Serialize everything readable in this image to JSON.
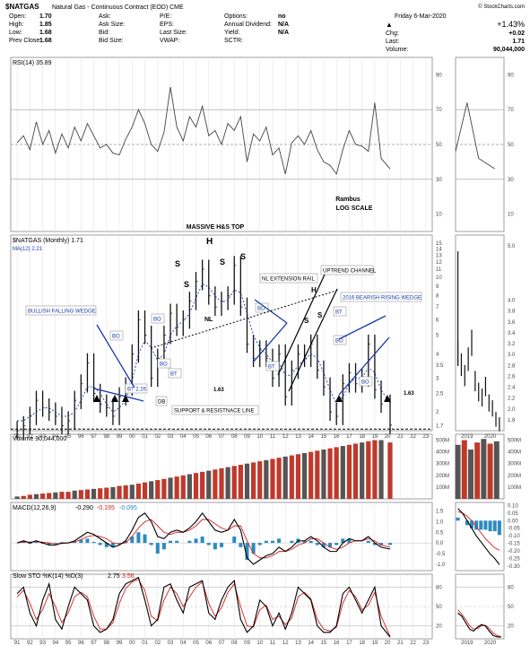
{
  "header": {
    "symbol": "$NATGAS",
    "name": "Natural Gas - Continuous Contract (EOD) CME",
    "copyright": "© StockCharts.com",
    "date": "Friday  6-Mar-2020",
    "quote": [
      {
        "label": "Open:",
        "value": "1.70"
      },
      {
        "label": "High:",
        "value": "1.85"
      },
      {
        "label": "Low:",
        "value": "1.68"
      },
      {
        "label": "Prev Close:",
        "value": "1.68"
      }
    ],
    "fields": [
      {
        "label": "Ask:",
        "value": ""
      },
      {
        "label": "Ask Size:",
        "value": ""
      },
      {
        "label": "Bid:",
        "value": ""
      },
      {
        "label": "Bid Size:",
        "value": ""
      }
    ],
    "fields2": [
      {
        "label": "P/E:",
        "value": ""
      },
      {
        "label": "EPS:",
        "value": ""
      },
      {
        "label": "Last Size:",
        "value": ""
      },
      {
        "label": "VWAP:",
        "value": ""
      }
    ],
    "fields3": [
      {
        "label": "Options:",
        "value": "no"
      },
      {
        "label": "Annual Dividend:",
        "value": "N/A"
      },
      {
        "label": "Yield:",
        "value": "N/A"
      },
      {
        "label": "SCTR:",
        "value": ""
      }
    ],
    "change_pct": "+1.43%",
    "chg_label": "Chg:",
    "chg_value": "+0.02",
    "last_label": "Last:",
    "last_value": "1.71",
    "volume_label": "Volume:",
    "volume_value": "90,044,000"
  },
  "chart_data": [
    {
      "type": "line",
      "title": "RSI(14) 35.89",
      "yticks": [
        10,
        30,
        50,
        70,
        90
      ],
      "ylim": [
        0,
        100
      ],
      "levels": [
        30,
        50,
        70
      ],
      "x": [
        1991,
        1991.5,
        1992,
        1992.5,
        1993,
        1993.5,
        1994,
        1994.5,
        1995,
        1995.5,
        1996,
        1996.5,
        1997,
        1997.5,
        1998,
        1998.5,
        1999,
        1999.5,
        2000,
        2000.5,
        2001,
        2001.5,
        2002,
        2002.5,
        2003,
        2003.5,
        2004,
        2004.5,
        2005,
        2005.5,
        2006,
        2006.5,
        2007,
        2007.5,
        2008,
        2008.5,
        2009,
        2009.5,
        2010,
        2010.5,
        2011,
        2011.5,
        2012,
        2012.5,
        2013,
        2013.5,
        2014,
        2014.5,
        2015,
        2015.5,
        2016,
        2016.5,
        2017,
        2017.5,
        2018,
        2018.5,
        2019,
        2019.5,
        2020.2
      ],
      "values": [
        51,
        55,
        47,
        63,
        50,
        58,
        45,
        56,
        48,
        60,
        52,
        62,
        55,
        48,
        50,
        45,
        44,
        53,
        60,
        70,
        62,
        50,
        46,
        57,
        83,
        60,
        52,
        66,
        60,
        72,
        55,
        58,
        50,
        62,
        58,
        66,
        40,
        56,
        52,
        60,
        44,
        48,
        33,
        51,
        55,
        50,
        58,
        47,
        40,
        38,
        33,
        47,
        58,
        50,
        49,
        46,
        74,
        42,
        36
      ]
    },
    {
      "type": "bar",
      "title": "$NATGAS (Monthly) 1.71",
      "legend": "MA(12) 2.21",
      "log_scale": true,
      "scale_label": "LOG SCALE",
      "author": "Rambus",
      "yticks": [
        1.7,
        2,
        2.5,
        3,
        3.5,
        4,
        5,
        6,
        7,
        8,
        9,
        10,
        11,
        12,
        13,
        14,
        15
      ],
      "ylim": [
        1.6,
        15.5
      ],
      "xlabels": [
        "91",
        "92",
        "93",
        "94",
        "95",
        "96",
        "97",
        "98",
        "99",
        "00",
        "01",
        "02",
        "03",
        "04",
        "05",
        "06",
        "07",
        "08",
        "09",
        "10",
        "11",
        "12",
        "13",
        "14",
        "15",
        "16",
        "17",
        "18",
        "19",
        "20",
        "21",
        "22",
        "23"
      ],
      "x": [
        1991,
        1991.5,
        1992,
        1992.5,
        1993,
        1993.5,
        1994,
        1994.5,
        1995,
        1995.5,
        1996,
        1996.5,
        1997,
        1997.5,
        1998,
        1998.5,
        1999,
        1999.5,
        2000,
        2000.5,
        2001,
        2001.5,
        2002,
        2002.5,
        2003,
        2003.5,
        2004,
        2004.5,
        2005,
        2005.5,
        2006,
        2006.5,
        2007,
        2007.5,
        2008,
        2008.5,
        2009,
        2009.5,
        2010,
        2010.5,
        2011,
        2011.5,
        2012,
        2012.5,
        2013,
        2013.5,
        2014,
        2014.5,
        2015,
        2015.5,
        2016,
        2016.5,
        2017,
        2017.5,
        2018,
        2018.5,
        2019,
        2019.5,
        2020.2
      ],
      "values": [
        1.6,
        1.7,
        1.9,
        2.3,
        2.1,
        2.0,
        1.9,
        1.7,
        1.8,
        2.3,
        2.8,
        3.6,
        2.5,
        2.2,
        2.1,
        1.9,
        2.4,
        2.7,
        4.0,
        6.0,
        5.0,
        3.0,
        3.8,
        5.0,
        6.5,
        5.5,
        6.0,
        7.5,
        9.5,
        11.0,
        8.0,
        7.0,
        7.5,
        8.0,
        11.5,
        7.0,
        4.5,
        3.8,
        4.2,
        3.8,
        3.0,
        4.0,
        2.4,
        3.3,
        4.0,
        3.8,
        4.5,
        3.3,
        2.7,
        2.0,
        1.9,
        2.8,
        3.2,
        2.8,
        3.0,
        4.5,
        2.6,
        2.2,
        1.71
      ],
      "ma12": [
        1.8,
        1.8,
        1.9,
        2.0,
        2.1,
        2.1,
        2.0,
        1.9,
        1.9,
        2.0,
        2.3,
        2.7,
        2.7,
        2.5,
        2.2,
        2.0,
        2.1,
        2.3,
        2.9,
        4.0,
        4.7,
        4.3,
        3.7,
        4.0,
        5.0,
        5.6,
        5.9,
        6.5,
        7.8,
        9.2,
        8.9,
        8.0,
        7.4,
        7.6,
        8.6,
        8.3,
        6.5,
        5.0,
        4.3,
        4.0,
        3.6,
        3.6,
        3.1,
        3.1,
        3.5,
        3.7,
        4.0,
        3.8,
        3.2,
        2.6,
        2.2,
        2.4,
        2.8,
        3.0,
        3.0,
        3.4,
        3.2,
        2.6,
        2.21
      ],
      "support_line": 1.63,
      "support_label": "1.63",
      "annotations": [
        "MASSIVE H&S TOP",
        "S",
        "S",
        "H",
        "S",
        "S",
        "NL",
        "NL EXTENSION RAIL",
        "UPTREND CHANNEL",
        "H",
        "S",
        "S",
        "BULLISH FALLING WEDGE",
        "2016 BEARISH RISING WEDGE",
        "BO",
        "BO",
        "BO",
        "BO",
        "BO",
        "BO",
        "BT",
        "BT",
        "BT",
        "BT 2.26",
        "DB",
        "SUPPORT & RESISTNACE LINE"
      ]
    },
    {
      "type": "bar",
      "title": "Volume 90,044,000",
      "yticks": [
        "100M",
        "200M",
        "300M",
        "400M",
        "500M"
      ],
      "ylim": [
        0,
        550
      ],
      "x": [
        1991,
        1991.5,
        1992,
        1992.5,
        1993,
        1993.5,
        1994,
        1994.5,
        1995,
        1995.5,
        1996,
        1996.5,
        1997,
        1997.5,
        1998,
        1998.5,
        1999,
        1999.5,
        2000,
        2000.5,
        2001,
        2001.5,
        2002,
        2002.5,
        2003,
        2003.5,
        2004,
        2004.5,
        2005,
        2005.5,
        2006,
        2006.5,
        2007,
        2007.5,
        2008,
        2008.5,
        2009,
        2009.5,
        2010,
        2010.5,
        2011,
        2011.5,
        2012,
        2012.5,
        2013,
        2013.5,
        2014,
        2014.5,
        2015,
        2015.5,
        2016,
        2016.5,
        2017,
        2017.5,
        2018,
        2018.5,
        2019,
        2019.5,
        2020.2
      ],
      "values": [
        20,
        25,
        35,
        40,
        45,
        50,
        55,
        60,
        60,
        70,
        75,
        80,
        85,
        90,
        95,
        100,
        110,
        115,
        120,
        130,
        140,
        150,
        160,
        170,
        180,
        190,
        200,
        210,
        220,
        230,
        240,
        250,
        260,
        270,
        280,
        290,
        300,
        310,
        320,
        330,
        340,
        350,
        360,
        370,
        380,
        390,
        400,
        410,
        420,
        430,
        440,
        450,
        460,
        470,
        480,
        490,
        500,
        500,
        480
      ]
    },
    {
      "type": "line",
      "title": "MACD(12,26,9)",
      "series": [
        {
          "name": "-0.290",
          "values": [
            0,
            0.1,
            0.0,
            0.1,
            0.0,
            -0.1,
            -0.1,
            0.0,
            0.0,
            0.1,
            0.3,
            0.5,
            0.4,
            0.2,
            0.0,
            -0.2,
            -0.1,
            0.1,
            0.6,
            1.2,
            1.4,
            1.0,
            0.3,
            0.2,
            0.5,
            0.6,
            0.5,
            0.7,
            1.0,
            1.4,
            1.0,
            0.6,
            0.5,
            0.6,
            1.1,
            0.6,
            -0.7,
            -1.0,
            -0.8,
            -0.6,
            -0.5,
            -0.2,
            -0.4,
            -0.2,
            0.1,
            0.1,
            0.3,
            0.1,
            -0.2,
            -0.4,
            -0.4,
            0.0,
            0.2,
            0.1,
            0.1,
            0.3,
            0.0,
            -0.2,
            -0.29
          ]
        },
        {
          "name": "-0.195",
          "values": [
            0,
            0.05,
            0.04,
            0.06,
            0.04,
            0.0,
            -0.05,
            -0.03,
            0.0,
            0.05,
            0.15,
            0.3,
            0.35,
            0.3,
            0.2,
            0.0,
            -0.05,
            0.0,
            0.3,
            0.7,
            1.0,
            1.1,
            0.8,
            0.5,
            0.4,
            0.5,
            0.5,
            0.6,
            0.8,
            1.1,
            1.1,
            0.9,
            0.7,
            0.6,
            0.8,
            0.8,
            0.1,
            -0.5,
            -0.7,
            -0.7,
            -0.6,
            -0.4,
            -0.4,
            -0.3,
            -0.1,
            0.0,
            0.2,
            0.2,
            0.0,
            -0.2,
            -0.3,
            -0.2,
            0.0,
            0.1,
            0.1,
            0.2,
            0.1,
            -0.1,
            -0.195
          ]
        },
        {
          "name": "-0.095",
          "values": [
            0,
            0.05,
            -0.04,
            0.04,
            -0.04,
            -0.1,
            -0.05,
            0.03,
            0.0,
            0.05,
            0.15,
            0.2,
            0.05,
            -0.1,
            -0.2,
            -0.2,
            -0.05,
            0.1,
            0.3,
            0.5,
            0.4,
            -0.1,
            -0.5,
            -0.3,
            0.1,
            0.1,
            0.0,
            0.1,
            0.2,
            0.3,
            -0.1,
            -0.3,
            -0.2,
            0.0,
            0.3,
            -0.2,
            -0.8,
            -0.5,
            -0.1,
            0.1,
            0.1,
            0.2,
            0.0,
            0.1,
            0.2,
            0.1,
            0.1,
            -0.1,
            -0.2,
            -0.2,
            -0.1,
            0.2,
            0.2,
            0.0,
            0.0,
            0.1,
            -0.1,
            -0.1,
            -0.095
          ]
        }
      ],
      "yticks": [
        -1.0,
        -0.5,
        0.0,
        0.5,
        1.0,
        1.5
      ],
      "ylim": [
        -1.3,
        1.9
      ]
    },
    {
      "type": "line",
      "title": "Slow STO %K(14) %D(3)",
      "series": [
        {
          "name": "2.75",
          "values": [
            70,
            80,
            40,
            20,
            60,
            85,
            30,
            15,
            50,
            80,
            70,
            60,
            20,
            10,
            15,
            30,
            70,
            85,
            90,
            95,
            60,
            20,
            30,
            80,
            85,
            60,
            40,
            80,
            85,
            90,
            40,
            30,
            60,
            80,
            90,
            30,
            10,
            20,
            60,
            50,
            20,
            40,
            15,
            40,
            80,
            70,
            60,
            20,
            10,
            10,
            20,
            70,
            80,
            60,
            40,
            60,
            80,
            20,
            2.75
          ]
        },
        {
          "name": "3.56",
          "values": [
            65,
            75,
            55,
            30,
            45,
            70,
            50,
            25,
            40,
            65,
            72,
            65,
            35,
            15,
            15,
            25,
            55,
            78,
            88,
            92,
            75,
            35,
            28,
            60,
            80,
            70,
            50,
            65,
            80,
            88,
            55,
            35,
            48,
            72,
            85,
            50,
            20,
            18,
            45,
            52,
            30,
            35,
            22,
            32,
            65,
            72,
            62,
            30,
            15,
            12,
            18,
            55,
            75,
            65,
            45,
            52,
            72,
            35,
            3.56
          ]
        }
      ],
      "yticks": [
        20,
        50,
        80
      ],
      "ylim": [
        0,
        100
      ]
    }
  ]
}
